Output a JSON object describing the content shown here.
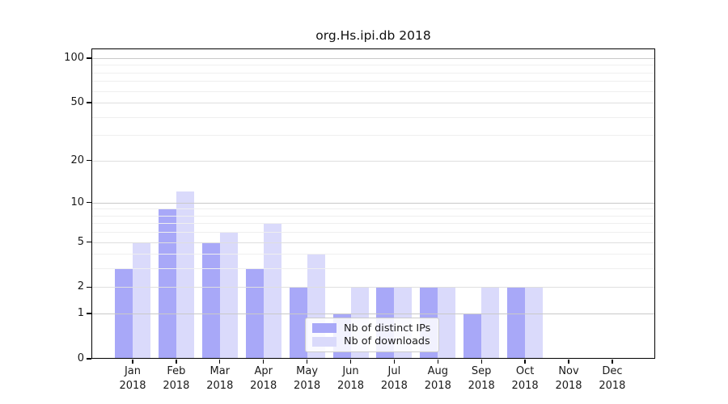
{
  "chart_data": {
    "type": "bar",
    "title": "org.Hs.ipi.db 2018",
    "year": "2018",
    "months": [
      "Jan",
      "Feb",
      "Mar",
      "Apr",
      "May",
      "Jun",
      "Jul",
      "Aug",
      "Sep",
      "Oct",
      "Nov",
      "Dec"
    ],
    "categories": [
      "Jan 2018",
      "Feb 2018",
      "Mar 2018",
      "Apr 2018",
      "May 2018",
      "Jun 2018",
      "Jul 2018",
      "Aug 2018",
      "Sep 2018",
      "Oct 2018",
      "Nov 2018",
      "Dec 2018"
    ],
    "series": [
      {
        "name": "Nb of distinct IPs",
        "color": "#a8a8f8",
        "values": [
          3,
          9,
          5,
          3,
          2,
          1,
          2,
          2,
          1,
          2,
          0,
          0
        ]
      },
      {
        "name": "Nb of downloads",
        "color": "#dadafb",
        "values": [
          5,
          12,
          6,
          7,
          4,
          2,
          2,
          2,
          2,
          2,
          0,
          0
        ]
      }
    ],
    "xlabel": "",
    "ylabel": "",
    "yscale": "log1p",
    "ylim": [
      0,
      116
    ],
    "yticks": [
      0,
      1,
      2,
      5,
      10,
      20,
      50,
      100
    ],
    "ytick_labels": [
      "0",
      "1",
      "2",
      "5",
      "10",
      "20",
      "50",
      "100"
    ],
    "minor_gridlines": [
      3,
      4,
      6,
      7,
      8,
      9,
      30,
      40,
      60,
      70,
      80,
      90
    ],
    "emphasized_gridlines": [
      1,
      10,
      100
    ],
    "grid": true,
    "legend_position": "lower-center-inside",
    "axis_color": "#000000",
    "gridline_major_color": "#c9c9c9",
    "gridline_labeled_color": "#dfdfdf",
    "gridline_minor_color": "#efefef"
  },
  "legend": {
    "items": [
      {
        "label": "Nb of distinct IPs"
      },
      {
        "label": "Nb of downloads"
      }
    ]
  }
}
